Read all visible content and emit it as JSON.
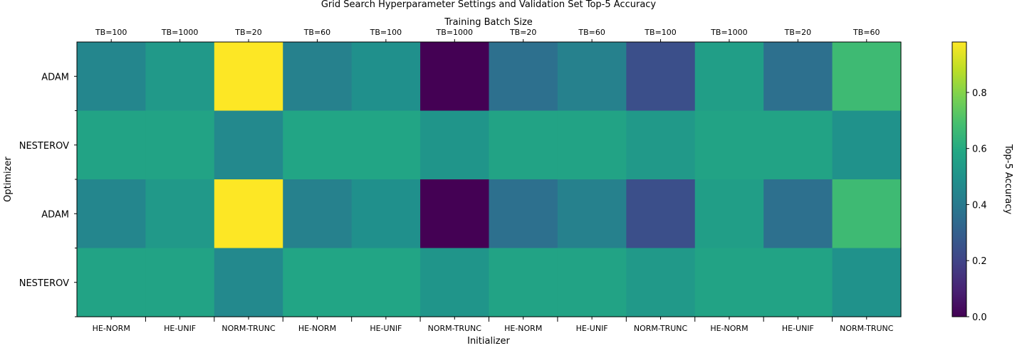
{
  "chart_data": {
    "type": "heatmap",
    "title": "Grid Search Hyperparameter Settings and Validation Set Top-5 Accuracy",
    "xlabel": "Initializer",
    "x2label": "Training Batch Size",
    "ylabel": "Optimizer",
    "x_categories": [
      "HE-NORM",
      "HE-UNIF",
      "NORM-TRUNC",
      "HE-NORM",
      "HE-UNIF",
      "NORM-TRUNC",
      "HE-NORM",
      "HE-UNIF",
      "NORM-TRUNC",
      "HE-NORM",
      "HE-UNIF",
      "NORM-TRUNC"
    ],
    "x2_categories": [
      "TB=100",
      "TB=1000",
      "TB=20",
      "TB=60",
      "TB=100",
      "TB=1000",
      "TB=20",
      "TB=60",
      "TB=100",
      "TB=1000",
      "TB=20",
      "TB=60"
    ],
    "y_categories": [
      "ADAM",
      "NESTEROV",
      "ADAM",
      "NESTEROV"
    ],
    "values": [
      [
        0.45,
        0.53,
        0.98,
        0.43,
        0.49,
        0.0,
        0.36,
        0.43,
        0.24,
        0.55,
        0.36,
        0.67
      ],
      [
        0.57,
        0.57,
        0.46,
        0.58,
        0.58,
        0.51,
        0.57,
        0.57,
        0.53,
        0.57,
        0.57,
        0.5
      ],
      [
        0.45,
        0.53,
        0.98,
        0.43,
        0.49,
        0.0,
        0.36,
        0.43,
        0.24,
        0.55,
        0.36,
        0.67
      ],
      [
        0.57,
        0.57,
        0.46,
        0.58,
        0.58,
        0.51,
        0.57,
        0.57,
        0.53,
        0.57,
        0.57,
        0.5
      ]
    ],
    "colormap": "viridis",
    "clim": [
      0,
      0.98
    ],
    "colorbar": {
      "label": "Top-5 Accuracy",
      "ticks": [
        0.0,
        0.2,
        0.4,
        0.6,
        0.8
      ],
      "tick_labels": [
        "0.0",
        "0.2",
        "0.4",
        "0.6",
        "0.8"
      ]
    },
    "grid": false
  }
}
